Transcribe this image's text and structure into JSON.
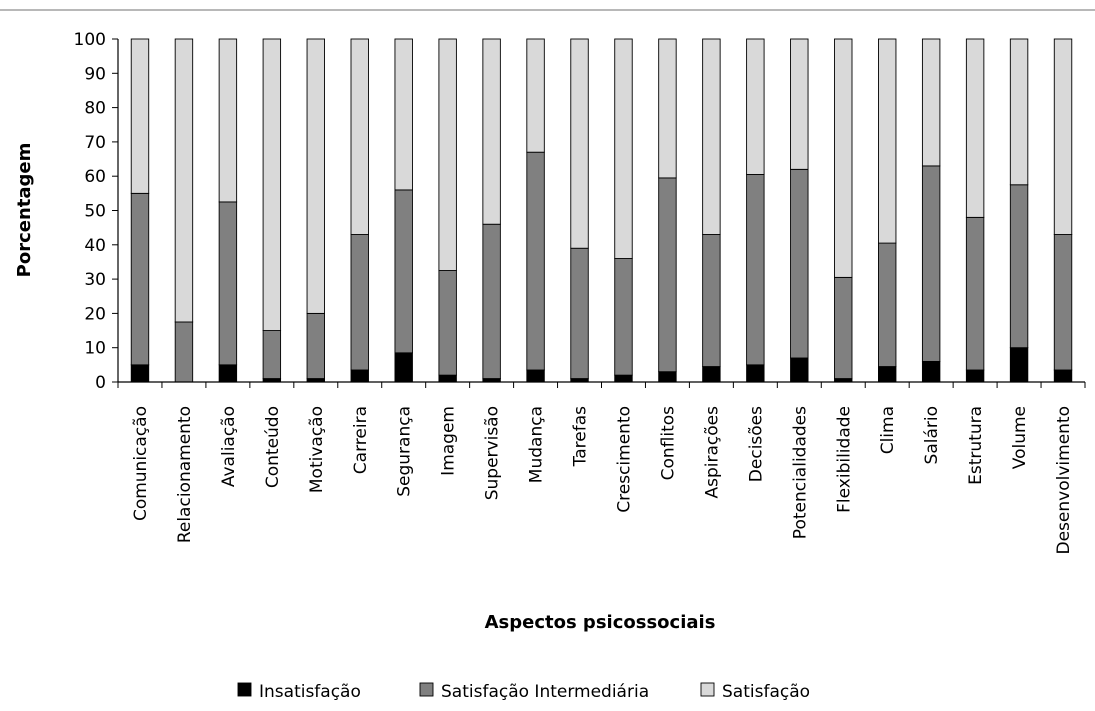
{
  "chart_data": {
    "type": "bar",
    "stacked": true,
    "title": "",
    "xlabel": "Aspectos psicossociais",
    "ylabel": "Porcentagem",
    "ylim": [
      0,
      100
    ],
    "yticks": [
      0,
      10,
      20,
      30,
      40,
      50,
      60,
      70,
      80,
      90,
      100
    ],
    "grid": false,
    "legend_position": "bottom",
    "categories": [
      "Comunicação",
      "Relacionamento",
      "Avaliação",
      "Conteúdo",
      "Motivação",
      "Carreira",
      "Segurança",
      "Imagem",
      "Supervisão",
      "Mudança",
      "Tarefas",
      "Crescimento",
      "Conflitos",
      "Aspirações",
      "Decisões",
      "Potencialidades",
      "Flexibilidade",
      "Clima",
      "Salário",
      "Estrutura",
      "Volume",
      "Desenvolvimento"
    ],
    "series": [
      {
        "name": "Insatisfação",
        "color": "#000000",
        "values": [
          5,
          0,
          5,
          1,
          1,
          3.5,
          8.5,
          2,
          1,
          3.5,
          1,
          2,
          3,
          4.5,
          5,
          7,
          1,
          4.5,
          6,
          3.5,
          10,
          3.5
        ]
      },
      {
        "name": "Satisfação Intermediária",
        "color": "#808080",
        "values": [
          50,
          17.5,
          47.5,
          14,
          19,
          39.5,
          47.5,
          30.5,
          45,
          63.5,
          38,
          34,
          56.5,
          38.5,
          55.5,
          55,
          29.5,
          36,
          57,
          44.5,
          47.5,
          39.5
        ]
      },
      {
        "name": "Satisfação",
        "color": "#d9d9d9",
        "values": [
          45,
          82.5,
          47.5,
          85,
          80,
          57,
          44,
          67.5,
          54,
          33,
          61,
          64,
          40.5,
          57,
          39.5,
          38,
          69.5,
          59.5,
          37,
          52,
          42.5,
          57
        ]
      }
    ]
  }
}
